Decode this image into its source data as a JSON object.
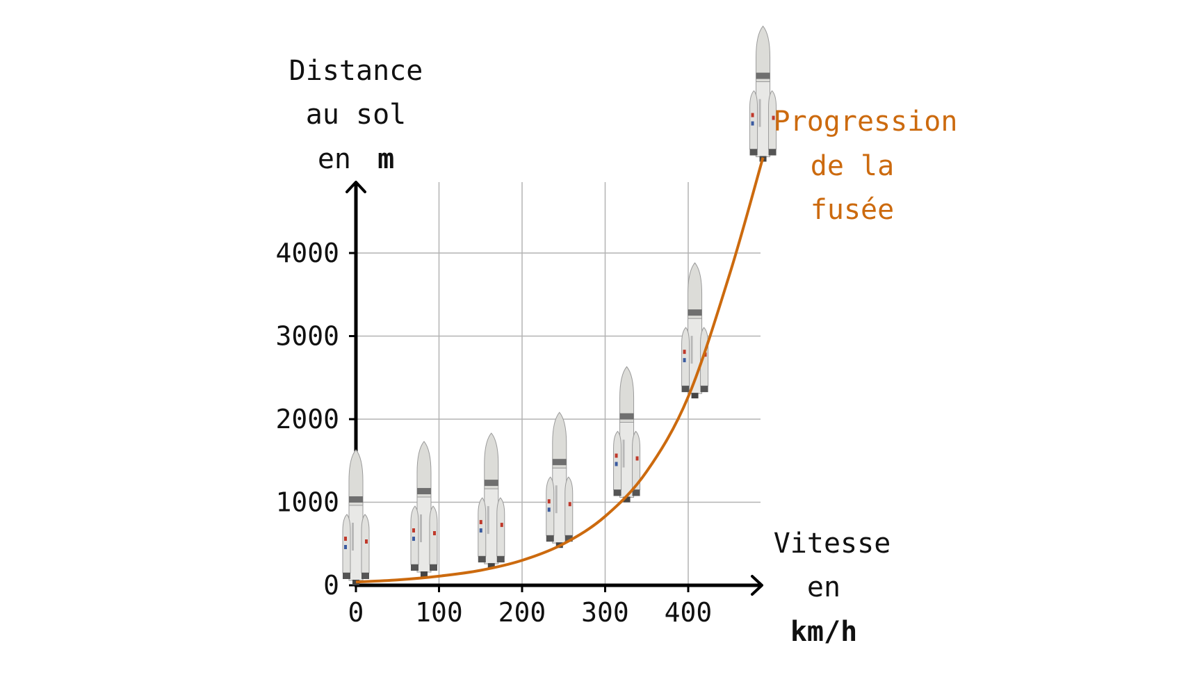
{
  "chart_data": {
    "type": "line",
    "ylabel": {
      "line1": "Distance",
      "line2": "au sol",
      "line3_prefix": "en",
      "unit": "m"
    },
    "xlabel": {
      "line1": "Vitesse",
      "line2": "en",
      "unit": "km/h"
    },
    "series_label": {
      "line1": "Progression",
      "line2": "de la",
      "line3": "fusée"
    },
    "xlim": [
      0,
      490
    ],
    "ylim": [
      0,
      4900
    ],
    "x_ticks": [
      0,
      100,
      200,
      300,
      400
    ],
    "y_ticks": [
      0,
      1000,
      2000,
      3000,
      4000
    ],
    "x_tick_labels": [
      "0",
      "100",
      "200",
      "300",
      "400"
    ],
    "y_tick_labels": [
      "0",
      "1000",
      "2000",
      "3000",
      "4000"
    ],
    "grid": true,
    "series": [
      {
        "x": [
          0,
          50,
          100,
          150,
          200,
          250,
          300,
          350,
          400,
          450,
          490
        ],
        "y": [
          40,
          65,
          110,
          180,
          300,
          500,
          830,
          1370,
          2270,
          3750,
          5150
        ]
      }
    ],
    "rocket_markers": [
      {
        "x": 0,
        "y": 0
      },
      {
        "x": 82,
        "y": 100
      },
      {
        "x": 163,
        "y": 200
      },
      {
        "x": 245,
        "y": 450
      },
      {
        "x": 326,
        "y": 1000
      },
      {
        "x": 408,
        "y": 2250
      },
      {
        "x": 490,
        "y": 5100
      }
    ],
    "colors": {
      "axis": "#000000",
      "grid": "#b3b3b3",
      "series": "#cc6a0e",
      "text": "#111111"
    }
  }
}
